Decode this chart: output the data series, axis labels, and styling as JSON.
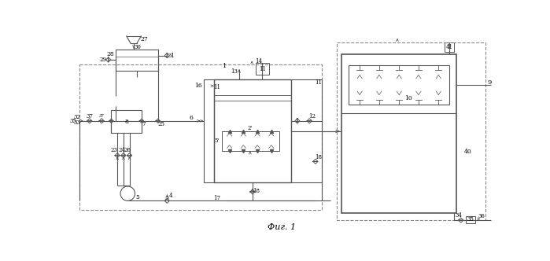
{
  "title": "Фиг. 1",
  "bg_color": "#ffffff",
  "lc": "#555555",
  "dc": "#888888"
}
